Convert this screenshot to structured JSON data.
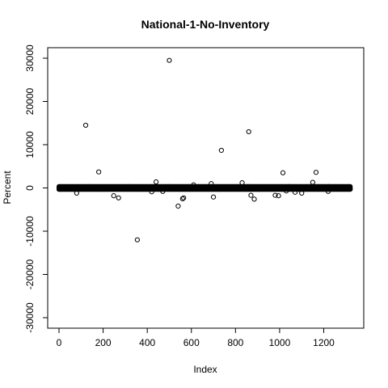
{
  "chart_data": {
    "type": "scatter",
    "title": "National-1-No-Inventory",
    "xlabel": "Index",
    "ylabel": "Percent",
    "xlim": [
      0,
      1330
    ],
    "ylim": [
      -30000,
      30000
    ],
    "x_ticks": [
      0,
      200,
      400,
      600,
      800,
      1000,
      1200
    ],
    "y_ticks": [
      -30000,
      -20000,
      -10000,
      0,
      10000,
      20000,
      30000
    ],
    "marker": "open-circle",
    "grid": false,
    "legend": "none",
    "series": [
      {
        "x": [
          121,
          500,
          736,
          860,
          180,
          1015,
          1165,
          440,
          1150,
          995,
          830,
          690,
          355,
          540,
          560,
          565,
          885,
          870,
          700,
          270,
          248,
          980,
          1100,
          80,
          1070,
          610,
          1220,
          1030,
          420,
          470
        ],
        "y": [
          14500,
          29500,
          8700,
          13000,
          3700,
          3500,
          3600,
          1400,
          1300,
          -1800,
          1200,
          1000,
          -12000,
          -4200,
          -2500,
          -2300,
          -2600,
          -1700,
          -2100,
          -2300,
          -1800,
          -1700,
          -1200,
          -1200,
          -1000,
          700,
          -800,
          -700,
          -900,
          -800
        ]
      }
    ],
    "dense_band": {
      "x_range": [
        0,
        1320
      ],
      "y_range": [
        -700,
        700
      ]
    }
  }
}
